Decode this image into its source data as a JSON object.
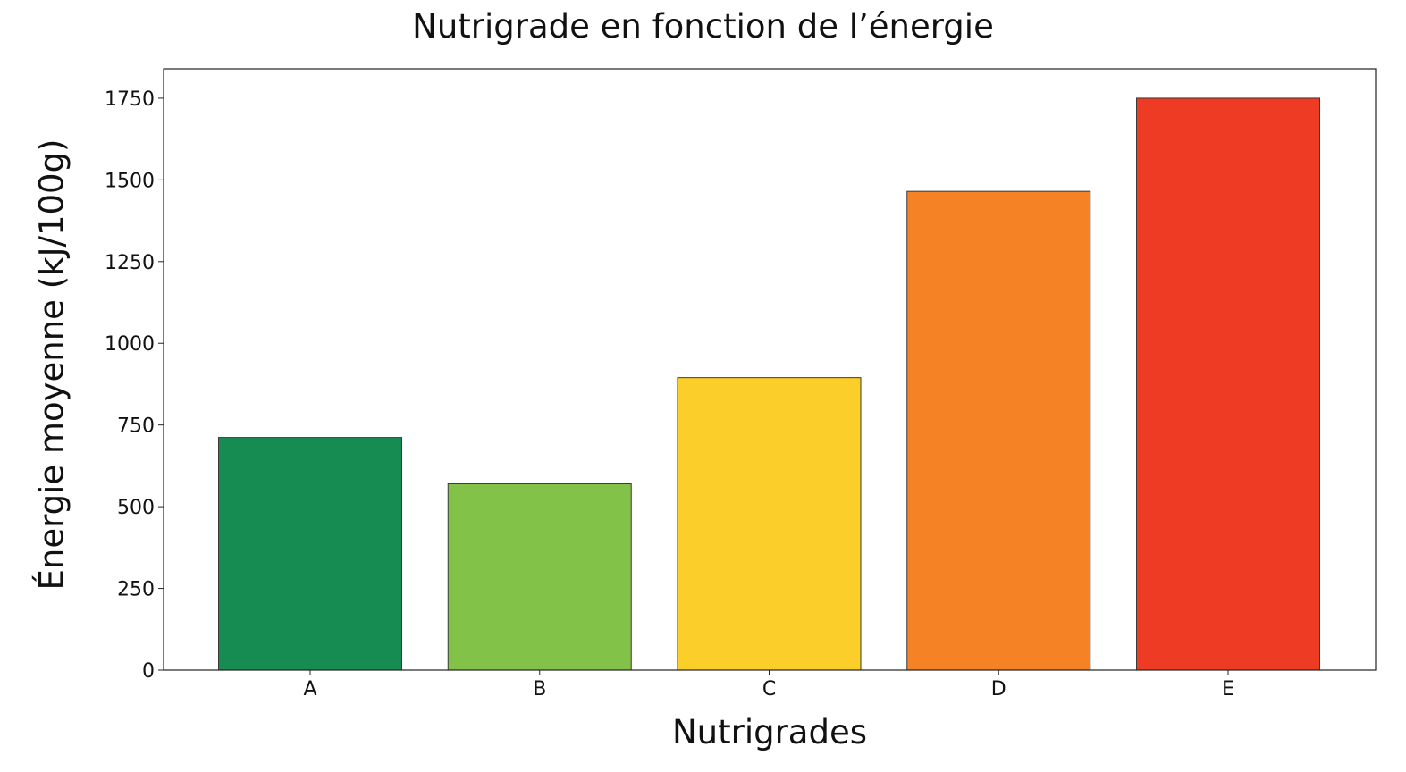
{
  "chart_data": {
    "type": "bar",
    "title": "Nutrigrade en fonction de l’énergie",
    "xlabel": "Nutrigrades",
    "ylabel": "Énergie moyenne (kJ/100g)",
    "categories": [
      "A",
      "B",
      "C",
      "D",
      "E"
    ],
    "values": [
      712,
      570,
      895,
      1465,
      1750
    ],
    "colors": [
      "#168c52",
      "#83c249",
      "#fcce29",
      "#f58225",
      "#ee3c24"
    ],
    "ylim": [
      0,
      1840
    ],
    "yticks": [
      0,
      250,
      500,
      750,
      1000,
      1250,
      1500,
      1750
    ],
    "grid": false,
    "legend": null
  }
}
